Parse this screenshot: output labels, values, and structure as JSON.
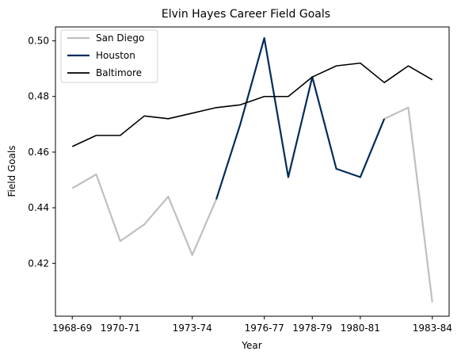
{
  "chart_data": {
    "type": "line",
    "title": "Elvin Hayes Career Field Goals",
    "xlabel": "Year",
    "ylabel": "Field Goals",
    "x_tick_labels": [
      "1968-69",
      "1970-71",
      "1973-74",
      "1976-77",
      "1978-79",
      "1980-81",
      "1983-84"
    ],
    "x_tick_positions": [
      0,
      2,
      5,
      8,
      10,
      12,
      15
    ],
    "y_ticks": [
      0.42,
      0.44,
      0.46,
      0.48,
      0.5
    ],
    "y_tick_labels": [
      "0.42",
      "0.44",
      "0.46",
      "0.48",
      "0.50"
    ],
    "xlim": [
      -0.7,
      15.7
    ],
    "ylim": [
      0.401,
      0.505
    ],
    "legend_position": "upper-left",
    "grid": false,
    "series": [
      {
        "name": "San Diego",
        "color": "#bfbfbf",
        "x": [
          0,
          1,
          2,
          3,
          4,
          5,
          6
        ],
        "values": [
          0.447,
          0.452,
          0.428,
          0.434,
          0.444,
          0.423,
          0.443
        ],
        "segments": [
          [
            0,
            6
          ],
          [
            13,
            15
          ]
        ],
        "extra_x": [
          13,
          14,
          15
        ],
        "extra_values": [
          0.472,
          0.476,
          0.406
        ]
      },
      {
        "name": "Houston",
        "color": "#002b5c",
        "x": [
          6,
          7,
          8,
          9,
          10,
          11,
          12,
          13
        ],
        "values": [
          0.443,
          0.47,
          0.501,
          0.451,
          0.487,
          0.454,
          0.451,
          0.472
        ]
      },
      {
        "name": "Baltimore",
        "color": "#000000",
        "x": [
          0,
          1,
          2,
          3,
          4,
          5,
          6,
          7,
          8,
          9,
          10,
          11,
          12,
          13,
          14,
          15
        ],
        "values": [
          0.462,
          0.466,
          0.466,
          0.473,
          0.472,
          0.474,
          0.476,
          0.477,
          0.48,
          0.48,
          0.487,
          0.491,
          0.492,
          0.485,
          0.491,
          0.486
        ]
      }
    ]
  }
}
